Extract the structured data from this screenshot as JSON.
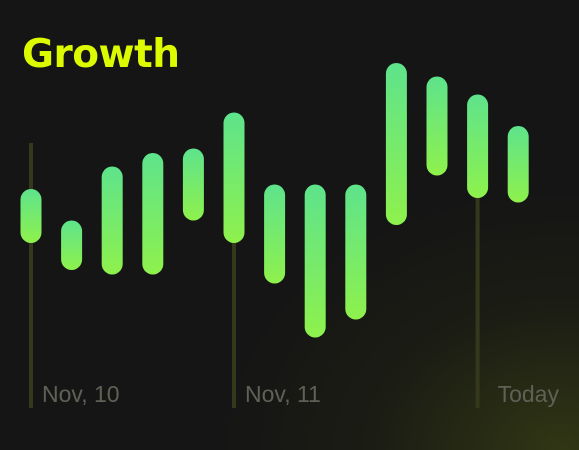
{
  "header": {
    "title": "Growth"
  },
  "colors": {
    "title": "#DDFB00",
    "bar_top": "#5EE38C",
    "bar_bottom": "#8EF14C",
    "divider": "#36381C",
    "tick_label": "#5F6156",
    "background": "#151515"
  },
  "chart_data": {
    "type": "bar",
    "subtype": "floating-range",
    "title": "Growth",
    "xlabel": "",
    "ylabel": "",
    "grid": false,
    "ticks": [
      {
        "label": "Nov, 10",
        "index": 0
      },
      {
        "label": "Nov, 11",
        "index": 5
      },
      {
        "label": "Today",
        "index": 11
      }
    ],
    "ranges": [
      {
        "low": 46,
        "high": 58
      },
      {
        "low": 40,
        "high": 51
      },
      {
        "low": 39,
        "high": 63
      },
      {
        "low": 39,
        "high": 66
      },
      {
        "low": 51,
        "high": 67
      },
      {
        "low": 46,
        "high": 75
      },
      {
        "low": 37,
        "high": 59
      },
      {
        "low": 25,
        "high": 59
      },
      {
        "low": 29,
        "high": 59
      },
      {
        "low": 50,
        "high": 86
      },
      {
        "low": 61,
        "high": 83
      },
      {
        "low": 56,
        "high": 79
      },
      {
        "low": 55,
        "high": 72
      }
    ],
    "ylim": [
      0,
      100
    ]
  }
}
